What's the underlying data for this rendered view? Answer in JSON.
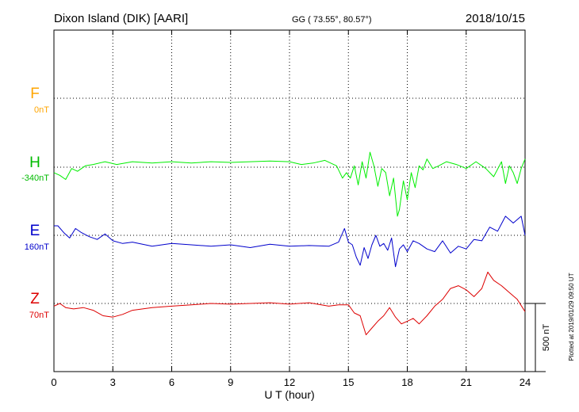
{
  "header": {
    "station": "Dixon Island (DIK)  [AARI]",
    "coords": "GG ( 73.55°,  80.57°)",
    "date": "2018/10/15"
  },
  "plotted_note": "Plotted at 2019/01/29 09:50 UT",
  "scale_label": "500 nT",
  "colors": {
    "F": "#ffa500",
    "H": "#00ee00",
    "E": "#0000cc",
    "Z": "#dd0000",
    "grid": "#000000"
  },
  "chart_data": {
    "type": "line",
    "xlabel": "U T (hour)",
    "xlim": [
      0,
      24
    ],
    "xticks": [
      0,
      3,
      6,
      9,
      12,
      15,
      18,
      21,
      24
    ],
    "units_per_scale_bar_nT": 500,
    "channels": [
      {
        "name": "F",
        "offset_label": "0nT",
        "has_data": false,
        "baseline_nT": 0,
        "x": [],
        "y": []
      },
      {
        "name": "H",
        "offset_label": "-340nT",
        "has_data": true,
        "baseline_nT": -340,
        "x": [
          0,
          0.3,
          0.6,
          0.9,
          1.2,
          1.6,
          2.0,
          2.6,
          3.2,
          4.0,
          5.0,
          6.0,
          7.0,
          8.0,
          9.0,
          10.0,
          11.0,
          12.0,
          12.6,
          13.2,
          13.8,
          14.4,
          14.7,
          14.9,
          15.1,
          15.3,
          15.5,
          15.7,
          15.9,
          16.1,
          16.3,
          16.5,
          16.7,
          16.9,
          17.1,
          17.3,
          17.5,
          17.6,
          17.8,
          18.0,
          18.2,
          18.4,
          18.6,
          18.8,
          19.0,
          19.3,
          19.6,
          20.0,
          20.5,
          21.0,
          21.5,
          22.0,
          22.4,
          22.8,
          23.0,
          23.2,
          23.4,
          23.6,
          23.8,
          24.0
        ],
        "y": [
          -380,
          -400,
          -430,
          -350,
          -370,
          -330,
          -320,
          -300,
          -320,
          -300,
          -310,
          -300,
          -310,
          -300,
          -305,
          -300,
          -295,
          -300,
          -320,
          -310,
          -290,
          -330,
          -420,
          -380,
          -420,
          -330,
          -470,
          -300,
          -420,
          -230,
          -330,
          -480,
          -350,
          -380,
          -550,
          -420,
          -700,
          -650,
          -440,
          -580,
          -380,
          -490,
          -330,
          -360,
          -280,
          -350,
          -330,
          -300,
          -320,
          -350,
          -300,
          -350,
          -410,
          -300,
          -460,
          -330,
          -380,
          -460,
          -350,
          -280
        ]
      },
      {
        "name": "E",
        "offset_label": "160nT",
        "has_data": true,
        "baseline_nT": 160,
        "x": [
          0,
          0.2,
          0.5,
          0.8,
          1.1,
          1.4,
          1.8,
          2.2,
          2.6,
          3.0,
          3.5,
          4.0,
          5.0,
          6.0,
          7.0,
          8.0,
          9.0,
          10.0,
          11.0,
          12.0,
          13.0,
          14.0,
          14.5,
          14.8,
          15.0,
          15.2,
          15.4,
          15.6,
          15.8,
          16.0,
          16.2,
          16.4,
          16.6,
          16.8,
          17.0,
          17.2,
          17.4,
          17.6,
          17.8,
          18.0,
          18.3,
          18.6,
          19.0,
          19.4,
          19.8,
          20.2,
          20.6,
          21.0,
          21.4,
          21.8,
          22.2,
          22.6,
          23.0,
          23.4,
          23.8,
          24.0
        ],
        "y": [
          230,
          230,
          180,
          140,
          210,
          180,
          150,
          130,
          170,
          120,
          100,
          110,
          80,
          100,
          90,
          80,
          90,
          70,
          95,
          80,
          85,
          80,
          110,
          210,
          110,
          90,
          0,
          -60,
          70,
          -10,
          90,
          160,
          80,
          100,
          50,
          140,
          -70,
          60,
          90,
          40,
          120,
          100,
          60,
          40,
          120,
          30,
          80,
          60,
          130,
          120,
          220,
          190,
          300,
          250,
          300,
          160
        ]
      },
      {
        "name": "Z",
        "offset_label": "70nT",
        "has_data": true,
        "baseline_nT": 70,
        "x": [
          0,
          0.3,
          0.6,
          1.0,
          1.5,
          2.0,
          2.5,
          3.0,
          3.5,
          4.0,
          5.0,
          6.0,
          7.0,
          8.0,
          9.0,
          10.0,
          11.0,
          12.0,
          13.0,
          14.0,
          14.5,
          15.0,
          15.3,
          15.6,
          15.9,
          16.2,
          16.5,
          16.8,
          17.1,
          17.4,
          17.7,
          18.0,
          18.3,
          18.6,
          19.0,
          19.4,
          19.8,
          20.2,
          20.6,
          21.0,
          21.4,
          21.8,
          22.1,
          22.4,
          22.8,
          23.2,
          23.6,
          24.0
        ],
        "y": [
          50,
          70,
          40,
          30,
          40,
          20,
          -20,
          -30,
          -10,
          20,
          40,
          50,
          60,
          70,
          65,
          70,
          75,
          65,
          75,
          50,
          60,
          60,
          0,
          -20,
          -160,
          -110,
          -60,
          -20,
          40,
          -30,
          -80,
          -60,
          -40,
          -80,
          -20,
          50,
          100,
          180,
          200,
          170,
          120,
          180,
          300,
          240,
          200,
          150,
          100,
          10
        ]
      }
    ]
  }
}
